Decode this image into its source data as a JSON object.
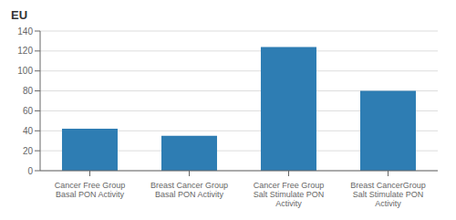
{
  "chart_data": {
    "type": "bar",
    "ylabel": "EU",
    "categories": [
      "Cancer Free Group\nBasal PON Activity",
      "Breast Cancer Group\nBasal PON Activity",
      "Cancer Free Group\nSalt Stimulate PON\nActivity",
      "Breast CancerGroup\nSalt Stimulate PON\nActivity"
    ],
    "values": [
      42,
      35,
      124,
      80
    ],
    "color": "#2e7db3",
    "ylim": [
      0,
      140
    ],
    "yticks": [
      0,
      20,
      40,
      60,
      80,
      100,
      120,
      140
    ],
    "grid": true
  }
}
